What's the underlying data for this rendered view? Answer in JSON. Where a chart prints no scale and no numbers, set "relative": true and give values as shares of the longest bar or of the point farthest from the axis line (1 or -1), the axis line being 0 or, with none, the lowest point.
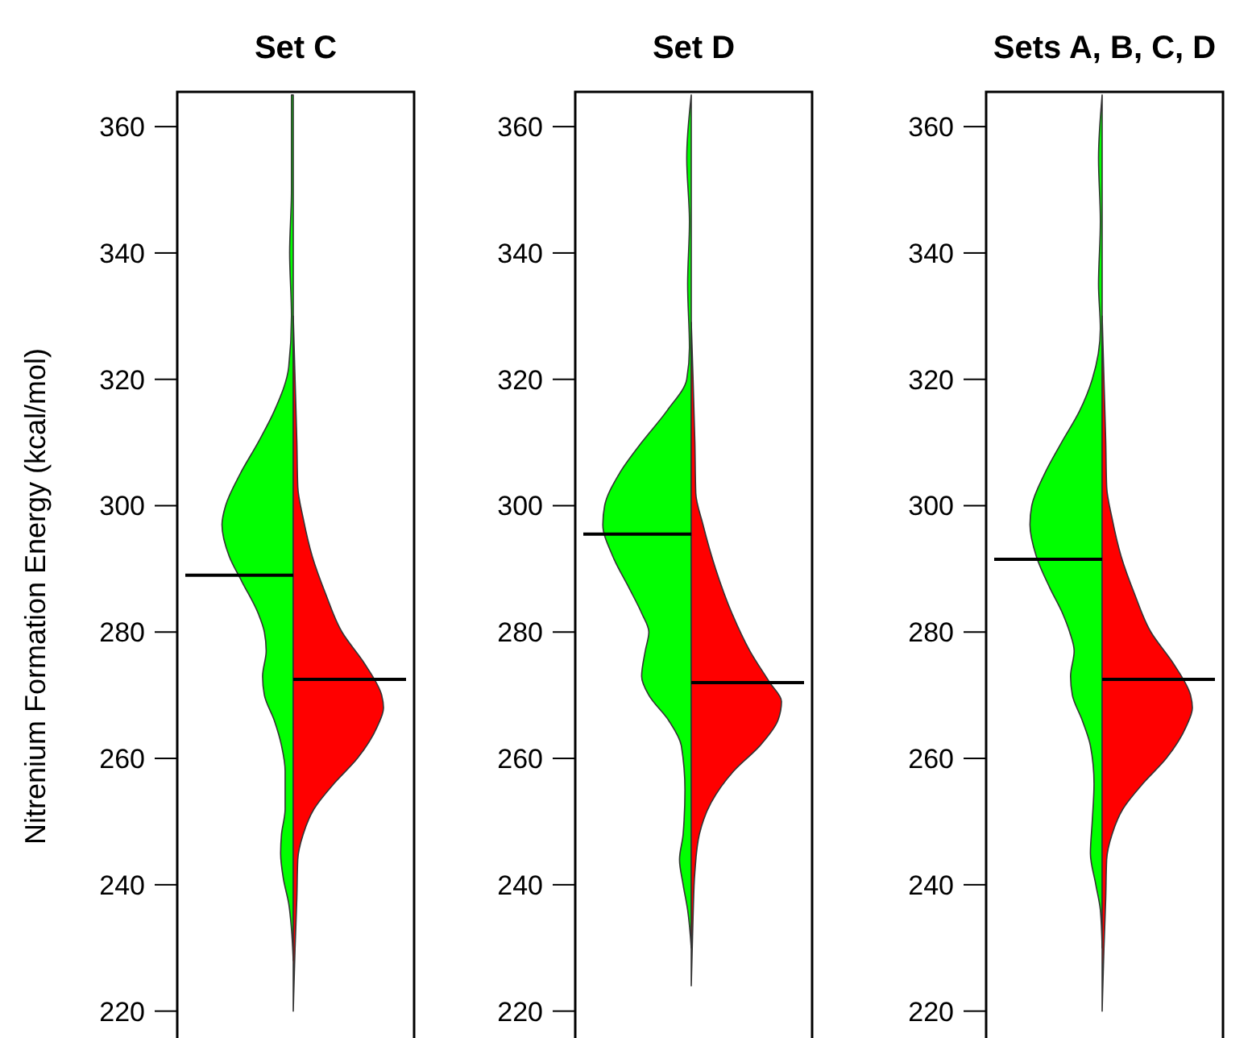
{
  "chart_data": [
    {
      "type": "area",
      "title": "Set C",
      "ylabel": "Nitrenium Formation Energy (kcal/mol)",
      "orientation": "horizontal",
      "relative": true,
      "ylim": [
        216,
        365.5
      ],
      "yticks": [
        220,
        240,
        260,
        280,
        300,
        320,
        340,
        360
      ],
      "grid": false,
      "series": [
        {
          "color": "#00ff00",
          "x": [
            365,
            350,
            340,
            330,
            322,
            315,
            310,
            305,
            300,
            297,
            292,
            288,
            283,
            280,
            277,
            273,
            270,
            266,
            262,
            258,
            252,
            248,
            245,
            241,
            237,
            233,
            228
          ],
          "values": [
            -0.02,
            -0.02,
            -0.04,
            -0.02,
            -0.05,
            -0.21,
            -0.39,
            -0.59,
            -0.75,
            -0.79,
            -0.71,
            -0.57,
            -0.39,
            -0.32,
            -0.3,
            -0.34,
            -0.32,
            -0.21,
            -0.13,
            -0.09,
            -0.09,
            -0.13,
            -0.14,
            -0.11,
            -0.05,
            -0.02,
            0
          ]
        },
        {
          "color": "#ff0000",
          "x": [
            330,
            320,
            310,
            303,
            298,
            292,
            286,
            280,
            275,
            270,
            268,
            265,
            260,
            256,
            252,
            248,
            244,
            238,
            230,
            220
          ],
          "values": [
            0,
            0.02,
            0.04,
            0.05,
            0.11,
            0.21,
            0.36,
            0.54,
            0.79,
            0.98,
            1,
            0.93,
            0.71,
            0.45,
            0.23,
            0.11,
            0.05,
            0.04,
            0.02,
            0
          ]
        }
      ],
      "ref_lines": [
        {
          "axis": "y",
          "value": 289,
          "color": "#000000"
        },
        {
          "axis": "y",
          "value": 272.5,
          "color": "#000000"
        }
      ]
    },
    {
      "type": "area",
      "title": "Set D",
      "orientation": "horizontal",
      "relative": true,
      "ylim": [
        216,
        365.5
      ],
      "yticks": [
        220,
        240,
        260,
        280,
        300,
        320,
        340,
        360
      ],
      "grid": false,
      "series": [
        {
          "color": "#00ff00",
          "x": [
            365,
            355,
            345,
            335,
            325,
            320,
            315,
            310,
            305,
            300,
            297,
            292,
            287,
            283,
            280,
            277,
            273,
            270,
            266,
            262,
            255,
            248,
            244,
            240,
            236,
            230
          ],
          "values": [
            0,
            -0.05,
            -0.02,
            -0.04,
            -0.02,
            -0.05,
            -0.27,
            -0.55,
            -0.8,
            -0.96,
            -0.98,
            -0.87,
            -0.69,
            -0.55,
            -0.47,
            -0.51,
            -0.55,
            -0.47,
            -0.25,
            -0.11,
            -0.07,
            -0.09,
            -0.13,
            -0.09,
            -0.04,
            0
          ]
        },
        {
          "color": "#ff0000",
          "x": [
            329,
            320,
            310,
            302,
            297,
            290,
            283,
            277,
            272,
            269,
            266,
            262,
            258,
            253,
            248,
            242,
            235,
            224
          ],
          "values": [
            0,
            0.02,
            0.04,
            0.05,
            0.13,
            0.27,
            0.45,
            0.65,
            0.87,
            1,
            0.96,
            0.76,
            0.47,
            0.22,
            0.09,
            0.04,
            0.02,
            0
          ]
        }
      ],
      "ref_lines": [
        {
          "axis": "y",
          "value": 295.5,
          "color": "#000000"
        },
        {
          "axis": "y",
          "value": 272,
          "color": "#000000"
        }
      ]
    },
    {
      "type": "area",
      "title": "Sets A, B, C, D",
      "orientation": "horizontal",
      "relative": true,
      "ylim": [
        216,
        365.5
      ],
      "yticks": [
        220,
        240,
        260,
        280,
        300,
        320,
        340,
        360
      ],
      "grid": false,
      "series": [
        {
          "color": "#00ff00",
          "x": [
            365,
            355,
            345,
            335,
            328,
            320,
            315,
            310,
            305,
            300,
            297,
            292,
            287,
            283,
            280,
            277,
            273,
            270,
            266,
            262,
            256,
            250,
            245,
            240,
            236,
            230
          ],
          "values": [
            0,
            -0.04,
            -0.02,
            -0.04,
            -0.02,
            -0.11,
            -0.25,
            -0.45,
            -0.64,
            -0.78,
            -0.8,
            -0.73,
            -0.58,
            -0.44,
            -0.36,
            -0.31,
            -0.35,
            -0.33,
            -0.22,
            -0.13,
            -0.09,
            -0.11,
            -0.13,
            -0.07,
            -0.02,
            0
          ]
        },
        {
          "color": "#ff0000",
          "x": [
            330,
            320,
            310,
            303,
            298,
            292,
            286,
            280,
            275,
            270,
            268,
            265,
            260,
            256,
            252,
            248,
            244,
            238,
            230,
            220
          ],
          "values": [
            0,
            0.02,
            0.04,
            0.05,
            0.11,
            0.21,
            0.36,
            0.54,
            0.79,
            0.98,
            1,
            0.93,
            0.71,
            0.45,
            0.23,
            0.11,
            0.05,
            0.04,
            0.02,
            0
          ]
        }
      ],
      "ref_lines": [
        {
          "axis": "y",
          "value": 291.5,
          "color": "#000000"
        },
        {
          "axis": "y",
          "value": 272.5,
          "color": "#000000"
        }
      ]
    }
  ]
}
